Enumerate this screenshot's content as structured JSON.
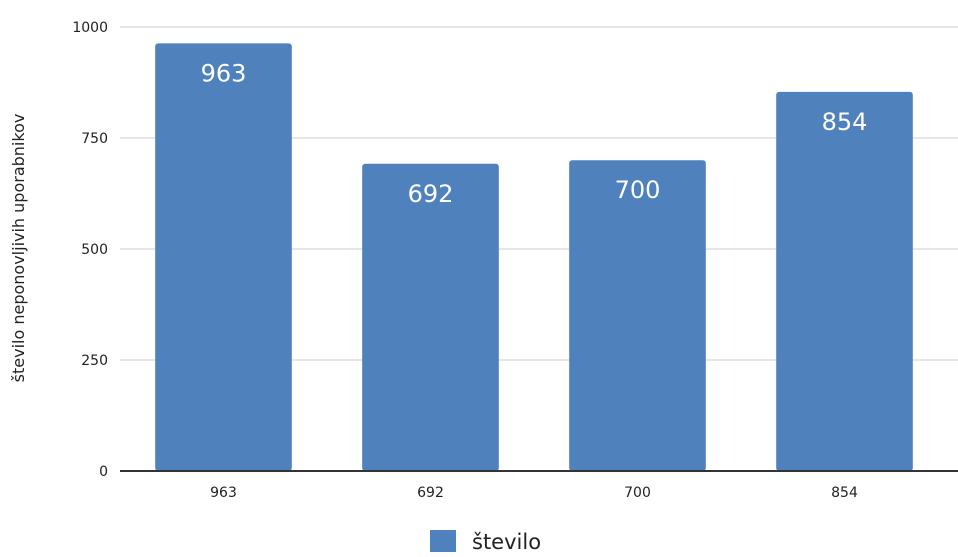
{
  "chart_data": {
    "type": "bar",
    "categories": [
      "963",
      "692",
      "700",
      "854"
    ],
    "series": [
      {
        "name": "število",
        "values": [
          963,
          692,
          700,
          854
        ],
        "color": "#4f81bd"
      }
    ],
    "ylabel": "število neponovljivih uporabnikov",
    "xlabel": "",
    "ylim": [
      0,
      1000
    ],
    "yticks": [
      0,
      250,
      500,
      750,
      1000
    ],
    "grid": true,
    "legend": "bottom-center",
    "colors": {
      "bar": "#4f81bd",
      "grid": "#cccccc",
      "axis": "#333333",
      "text": "#222222",
      "label": "#ffffff"
    }
  }
}
